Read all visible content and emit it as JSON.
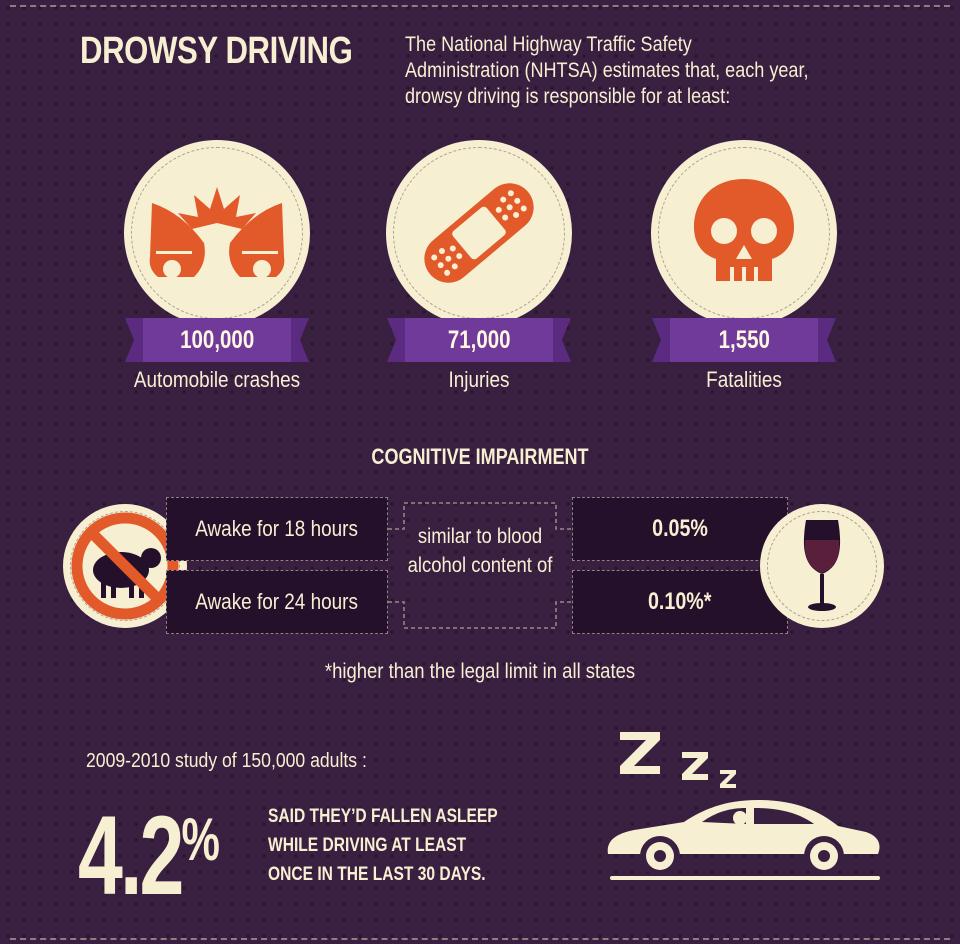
{
  "title": "DROWSY DRIVING",
  "intro": "The National Highway Traffic Safety Administration (NHTSA) estimates that, each year, drowsy driving is responsible for at least:",
  "stats": [
    {
      "value": "100,000",
      "label": "Automobile crashes",
      "icon": "car-crash-icon"
    },
    {
      "value": "71,000",
      "label": "Injuries",
      "icon": "bandage-icon"
    },
    {
      "value": "1,550",
      "label": "Fatalities",
      "icon": "skull-icon"
    }
  ],
  "cognitive": {
    "heading": "COGNITIVE IMPAIRMENT",
    "rows": [
      {
        "awake": "Awake for 18 hours",
        "bac": "0.05%"
      },
      {
        "awake": "Awake for 24 hours",
        "bac": "0.10%*"
      }
    ],
    "middle": "similar to blood alcohol content of",
    "icons": [
      "no-sheep-icon",
      "wine-glass-icon"
    ]
  },
  "note": "*higher than the legal limit in all states",
  "study": {
    "caption": "2009-2010 study of 150,000 adults :",
    "value": "4.2",
    "unit": "%",
    "description": "SAID THEY’D FALLEN ASLEEP WHILE DRIVING AT LEAST ONCE IN THE LAST 30 DAYS.",
    "icon": "sleeping-driver-car-icon"
  },
  "colors": {
    "background": "#3a2040",
    "cream": "#f7efd2",
    "orange": "#e2592a",
    "purple_ribbon": "#6f3a9a",
    "box": "#24102a"
  }
}
